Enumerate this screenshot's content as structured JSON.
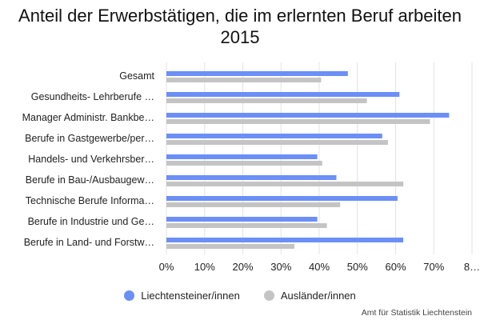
{
  "chart_data": {
    "type": "bar",
    "orientation": "horizontal",
    "title": "Anteil der Erwerbstätigen, die im erlernten Beruf arbeiten 2015",
    "categories": [
      "Gesamt",
      "Gesundheits- Lehrberufe …",
      "Manager Administr. Bankbe…",
      "Berufe in Gastgewerbe/per…",
      "Handels- und Verkehrsber…",
      "Berufe in Bau-/Ausbaugew…",
      "Technische Berufe Informa…",
      "Berufe in Industrie und Ge…",
      "Berufe in Land- und Forstw…"
    ],
    "series": [
      {
        "name": "Liechtensteiner/innen",
        "color": "#6b8ff7",
        "values": [
          47.5,
          61,
          74,
          56.5,
          39.5,
          44.5,
          60.5,
          39.5,
          62
        ]
      },
      {
        "name": "Ausländer/innen",
        "color": "#c4c4c4",
        "values": [
          40.5,
          52.5,
          69,
          58,
          40.8,
          62,
          45.5,
          42,
          33.5
        ]
      }
    ],
    "xlim": [
      0,
      80
    ],
    "ticks": [
      "0%",
      "10%",
      "20%",
      "30%",
      "40%",
      "50%",
      "60%",
      "70%",
      "8…"
    ],
    "tick_values": [
      0,
      10,
      20,
      30,
      40,
      50,
      60,
      70,
      80
    ],
    "grid": true,
    "legend_position": "bottom"
  },
  "source": "Amt für Statistik Liechtenstein"
}
